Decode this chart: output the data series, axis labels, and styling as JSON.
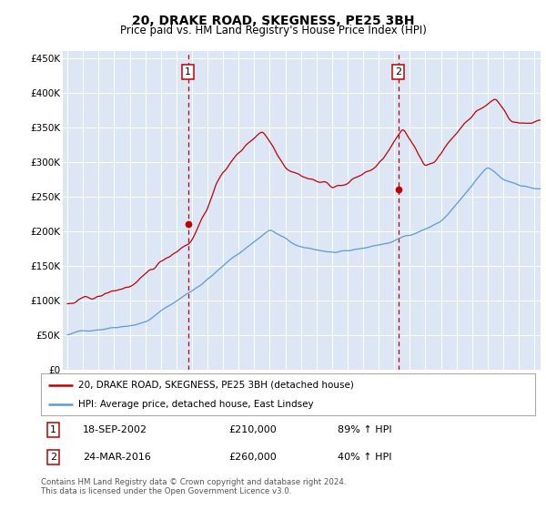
{
  "title": "20, DRAKE ROAD, SKEGNESS, PE25 3BH",
  "subtitle": "Price paid vs. HM Land Registry's House Price Index (HPI)",
  "bg_color": "#dce6f5",
  "hpi_color": "#5b9bd5",
  "price_color": "#c00000",
  "footer1": "Contains HM Land Registry data © Crown copyright and database right 2024.",
  "footer2": "This data is licensed under the Open Government Licence v3.0.",
  "legend_line1": "20, DRAKE ROAD, SKEGNESS, PE25 3BH (detached house)",
  "legend_line2": "HPI: Average price, detached house, East Lindsey",
  "m1_year": 2002.75,
  "m1_price": 210000,
  "m2_year": 2016.25,
  "m2_price": 260000,
  "ylim": [
    0,
    460000
  ],
  "yticks": [
    0,
    50000,
    100000,
    150000,
    200000,
    250000,
    300000,
    350000,
    400000,
    450000
  ],
  "ytick_labels": [
    "£0",
    "£50K",
    "£100K",
    "£150K",
    "£200K",
    "£250K",
    "£300K",
    "£350K",
    "£400K",
    "£450K"
  ],
  "xlim_start": 1994.7,
  "xlim_end": 2025.4
}
